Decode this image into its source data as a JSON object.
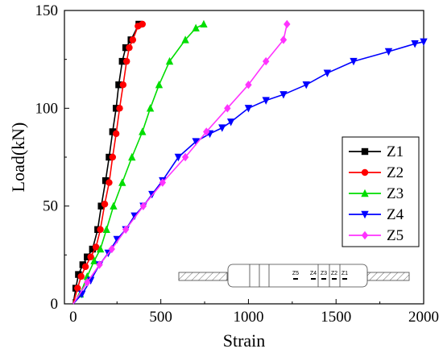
{
  "chart_data": {
    "type": "line",
    "xlabel": "Strain",
    "ylabel": "Load(kN)",
    "xlim": [
      -50,
      2000
    ],
    "ylim": [
      0,
      150
    ],
    "xticks": [
      0,
      500,
      1000,
      1500,
      2000
    ],
    "yticks": [
      0,
      50,
      100,
      150
    ],
    "grid": false,
    "legend_position": "right",
    "series": [
      {
        "name": "Z1",
        "color": "#000000",
        "marker": "square",
        "x": [
          0,
          15,
          30,
          55,
          80,
          110,
          140,
          160,
          185,
          205,
          225,
          245,
          260,
          280,
          300,
          330,
          375
        ],
        "y": [
          0,
          8,
          15,
          20,
          24,
          28,
          38,
          50,
          63,
          75,
          88,
          100,
          112,
          124,
          131,
          135,
          143
        ]
      },
      {
        "name": "Z2",
        "color": "#ff0000",
        "marker": "circle",
        "x": [
          0,
          25,
          45,
          70,
          100,
          130,
          155,
          180,
          205,
          225,
          245,
          265,
          285,
          305,
          320,
          340,
          370,
          395
        ],
        "y": [
          0,
          8,
          14,
          19,
          24,
          29,
          38,
          51,
          62,
          75,
          87,
          100,
          112,
          124,
          131,
          135,
          142,
          143
        ]
      },
      {
        "name": "Z3",
        "color": "#00dd00",
        "marker": "triangle-up",
        "x": [
          0,
          40,
          80,
          120,
          155,
          190,
          230,
          280,
          335,
          395,
          440,
          490,
          550,
          640,
          700,
          745
        ],
        "y": [
          0,
          5,
          14,
          22,
          28,
          38,
          50,
          62,
          75,
          88,
          100,
          112,
          124,
          135,
          141,
          143
        ]
      },
      {
        "name": "Z4",
        "color": "#0000ff",
        "marker": "triangle-down",
        "x": [
          0,
          50,
          100,
          150,
          200,
          250,
          300,
          350,
          400,
          450,
          510,
          600,
          700,
          780,
          850,
          900,
          1000,
          1100,
          1200,
          1330,
          1450,
          1600,
          1800,
          1950,
          2000
        ],
        "y": [
          0,
          5,
          12,
          20,
          26,
          33,
          38,
          45,
          50,
          56,
          63,
          75,
          83,
          87,
          90,
          93,
          100,
          104,
          107,
          112,
          118,
          124,
          129,
          133,
          134
        ]
      },
      {
        "name": "Z5",
        "color": "#ff33ff",
        "marker": "diamond",
        "x": [
          0,
          80,
          150,
          220,
          300,
          400,
          510,
          640,
          760,
          880,
          1000,
          1100,
          1200,
          1220
        ],
        "y": [
          0,
          11,
          20,
          28,
          38,
          50,
          62,
          75,
          88,
          100,
          112,
          124,
          135,
          143
        ]
      }
    ],
    "inset": {
      "gauge_labels": [
        "Z5",
        "Z4",
        "Z3",
        "Z2",
        "Z1"
      ]
    }
  }
}
